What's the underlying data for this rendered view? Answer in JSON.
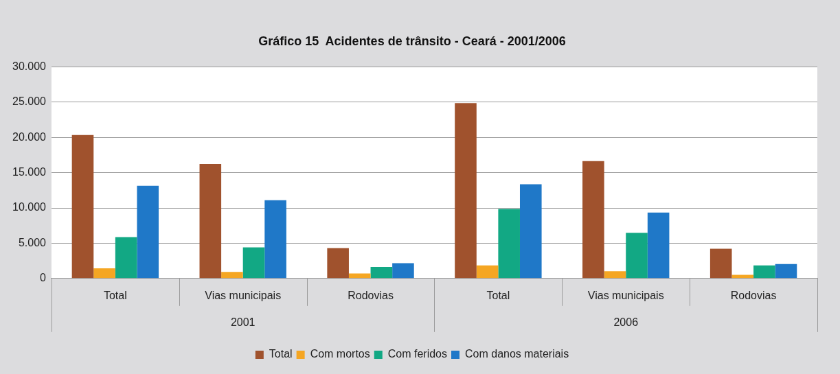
{
  "chart_data": {
    "type": "bar",
    "title": "Gráfico 15  Acidentes de trânsito - Ceará - 2001/2006",
    "categories": [
      "Total",
      "Vias municipais",
      "Rodovias",
      "Total",
      "Vias municipais",
      "Rodovias"
    ],
    "annotations": [
      "2001",
      "2006"
    ],
    "series": [
      {
        "name": "Total",
        "color": "#a0522d",
        "values": [
          20350,
          16240,
          4320,
          24870,
          16650,
          4210
        ]
      },
      {
        "name": "Com mortos",
        "color": "#f5a623",
        "values": [
          1440,
          920,
          720,
          1850,
          1030,
          510
        ]
      },
      {
        "name": "Com feridos",
        "color": "#12a884",
        "values": [
          5860,
          4420,
          1640,
          9870,
          6470,
          1850
        ]
      },
      {
        "name": "Com danos materiais",
        "color": "#1f78c8",
        "values": [
          13150,
          11100,
          2160,
          13360,
          9350,
          2060
        ]
      }
    ],
    "ylim": [
      0,
      30000
    ],
    "yticks": [
      {
        "value": 0,
        "label": "0"
      },
      {
        "value": 5000,
        "label": "5.000"
      },
      {
        "value": 10000,
        "label": "10.000"
      },
      {
        "value": 15000,
        "label": "15.000"
      },
      {
        "value": 20000,
        "label": "20.000"
      },
      {
        "value": 25000,
        "label": "25.000"
      },
      {
        "value": 30000,
        "label": "30.000"
      }
    ],
    "grid": "y",
    "legend": "bottom"
  }
}
